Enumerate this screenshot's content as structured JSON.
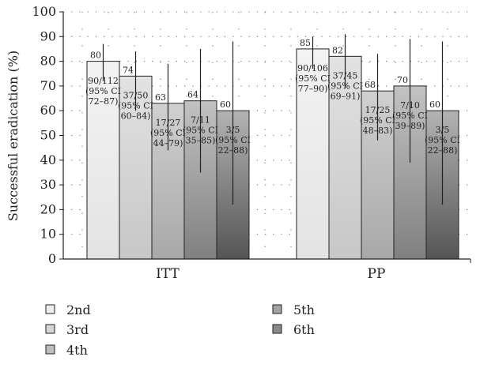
{
  "chart_data": {
    "type": "bar",
    "ylabel": "Successful eradication (%)",
    "ylim": [
      0,
      100
    ],
    "yticks": [
      0,
      10,
      20,
      30,
      40,
      50,
      60,
      70,
      80,
      90,
      100
    ],
    "grid": "dotted",
    "legend_position": "bottom",
    "categories": [
      "ITT",
      "PP"
    ],
    "series": [
      {
        "name": "2nd",
        "color": "#ededed",
        "values": [
          80,
          85
        ],
        "error_low": [
          72,
          77
        ],
        "error_high": [
          87,
          90
        ],
        "notes": [
          [
            "90/112",
            "(95% CI",
            "72–87)"
          ],
          [
            "90/106",
            "(95% CI",
            "77–90)"
          ]
        ]
      },
      {
        "name": "3rd",
        "color": "#d6d6d6",
        "values": [
          74,
          82
        ],
        "error_low": [
          60,
          69
        ],
        "error_high": [
          84,
          91
        ],
        "notes": [
          [
            "37/50",
            "(95% CI",
            "60–84)"
          ],
          [
            "37/45",
            "(95% CI",
            "69–91)"
          ]
        ]
      },
      {
        "name": "4th",
        "color": "#bdbdbd",
        "values": [
          63,
          68
        ],
        "error_low": [
          44,
          48
        ],
        "error_high": [
          79,
          83
        ],
        "notes": [
          [
            "17/27",
            "(95% CI",
            "44–79)"
          ],
          [
            "17/25",
            "(95% CI",
            "48–83)"
          ]
        ]
      },
      {
        "name": "5th",
        "color": "#a3a3a3",
        "values": [
          64,
          70
        ],
        "error_low": [
          35,
          39
        ],
        "error_high": [
          85,
          89
        ],
        "notes": [
          [
            "7/11",
            "(95% CI",
            "35–85)"
          ],
          [
            "7/10",
            "(95% CI",
            "39–89)"
          ]
        ]
      },
      {
        "name": "6th",
        "color": "#8a8a8a",
        "values": [
          60,
          60
        ],
        "error_low": [
          22,
          22
        ],
        "error_high": [
          88,
          88
        ],
        "notes": [
          [
            "3/5",
            "(95% CI",
            "22–88)"
          ],
          [
            "3/5",
            "(95% CI",
            "22–88)"
          ]
        ]
      }
    ]
  }
}
